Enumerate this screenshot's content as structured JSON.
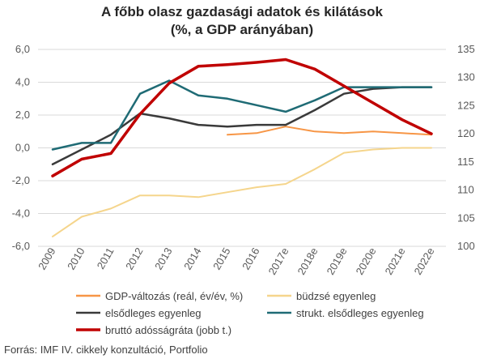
{
  "chart_data": {
    "type": "line",
    "title": "A főbb olasz gazdasági adatok és kilátások",
    "subtitle": "(%, a GDP arányában)",
    "categories": [
      "2009",
      "2010",
      "2011",
      "2012",
      "2013",
      "2014",
      "2015",
      "2016",
      "2017e",
      "2018e",
      "2019e",
      "2020e",
      "2021e",
      "2022e"
    ],
    "y_left": {
      "min": -6,
      "max": 6,
      "ticks": [
        "6,0",
        "4,0",
        "2,0",
        "0,0",
        "-2,0",
        "-4,0",
        "-6,0"
      ],
      "tick_values": [
        6,
        4,
        2,
        0,
        -2,
        -4,
        -6
      ]
    },
    "y_right": {
      "min": 100,
      "max": 135,
      "ticks": [
        "135",
        "130",
        "125",
        "120",
        "115",
        "110",
        "105",
        "100"
      ],
      "tick_values": [
        135,
        130,
        125,
        120,
        115,
        110,
        105,
        100
      ]
    },
    "grid": "horizontal",
    "legend_position": "bottom",
    "series": [
      {
        "name": "GDP-változás (reál, év/év, %)",
        "color": "#f79646",
        "axis": "left",
        "width": 2,
        "values": [
          null,
          null,
          null,
          null,
          null,
          null,
          0.8,
          0.9,
          1.3,
          1.0,
          0.9,
          1.0,
          0.9,
          0.8
        ]
      },
      {
        "name": "büdzsé egyenleg",
        "color": "#f5d58c",
        "axis": "left",
        "width": 2,
        "values": [
          -5.4,
          -4.2,
          -3.7,
          -2.9,
          -2.9,
          -3.0,
          -2.7,
          -2.4,
          -2.2,
          -1.3,
          -0.3,
          -0.1,
          0.0,
          0.0
        ]
      },
      {
        "name": "elsődleges egyenleg",
        "color": "#3a3a3a",
        "axis": "left",
        "width": 2.5,
        "values": [
          -1.0,
          -0.1,
          0.8,
          2.1,
          1.8,
          1.4,
          1.3,
          1.4,
          1.4,
          2.3,
          3.3,
          3.6,
          3.7,
          3.7
        ]
      },
      {
        "name": "strukt. elsődleges egyenleg",
        "color": "#1f6b75",
        "axis": "left",
        "width": 2.5,
        "values": [
          -0.1,
          0.3,
          0.3,
          3.3,
          4.1,
          3.2,
          3.0,
          2.6,
          2.2,
          2.9,
          3.7,
          3.7,
          3.7,
          3.7
        ]
      },
      {
        "name": "bruttó adósságráta (jobb t.)",
        "color": "#c00000",
        "axis": "right",
        "width": 3.5,
        "values": [
          112.5,
          115.5,
          116.5,
          123.5,
          129,
          132,
          132.3,
          132.7,
          133.2,
          131.5,
          128.5,
          125.5,
          122.5,
          120
        ]
      }
    ]
  },
  "source": "Forrás: IMF IV. cikkely konzultáció, Portfolio"
}
